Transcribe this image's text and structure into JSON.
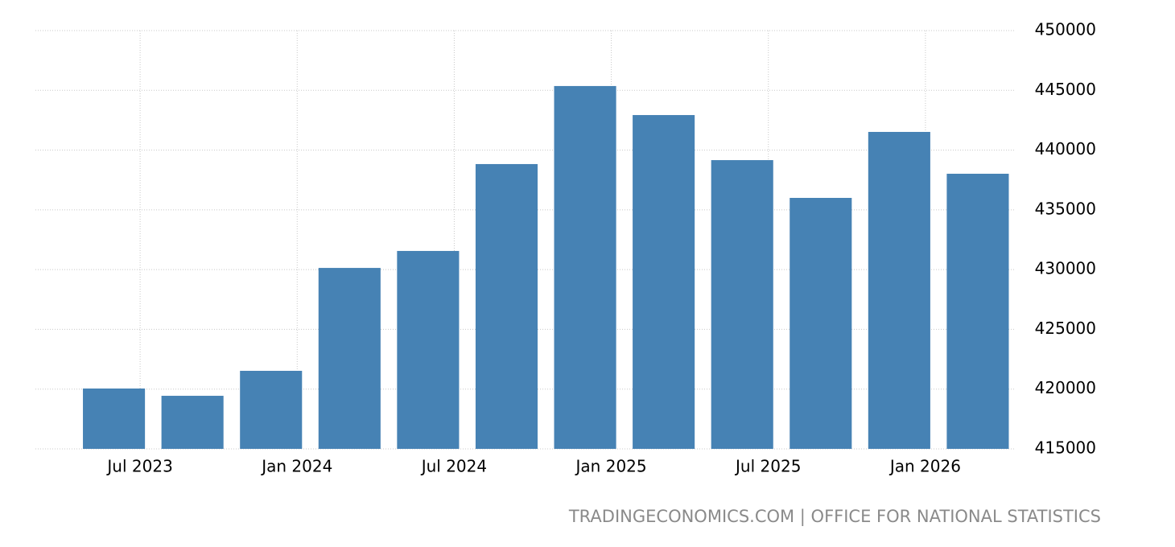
{
  "chart_data": {
    "type": "bar",
    "source": "TRADINGECONOMICS.COM | OFFICE FOR NATIONAL STATISTICS",
    "x": [
      "Jun 2023",
      "Sep 2023",
      "Dec 2023",
      "Mar 2024",
      "Jun 2024",
      "Sep 2024",
      "Dec 2024",
      "Mar 2025",
      "Jun 2025",
      "Sep 2025",
      "Dec 2025",
      "Mar 2026"
    ],
    "values": [
      420050,
      419440,
      421530,
      430140,
      431560,
      438830,
      445360,
      442930,
      439160,
      436000,
      441520,
      438020
    ],
    "color": "#4682b4",
    "xlim": [
      "Mar 2023",
      "May 2026"
    ],
    "xticks": [
      "Jul 2023",
      "Jan 2024",
      "Jul 2024",
      "Jan 2025",
      "Jul 2025",
      "Jan 2026"
    ],
    "ylim": [
      415000,
      450000
    ],
    "yticks": [
      415000,
      420000,
      425000,
      430000,
      435000,
      440000,
      445000,
      450000
    ],
    "grid": true
  }
}
